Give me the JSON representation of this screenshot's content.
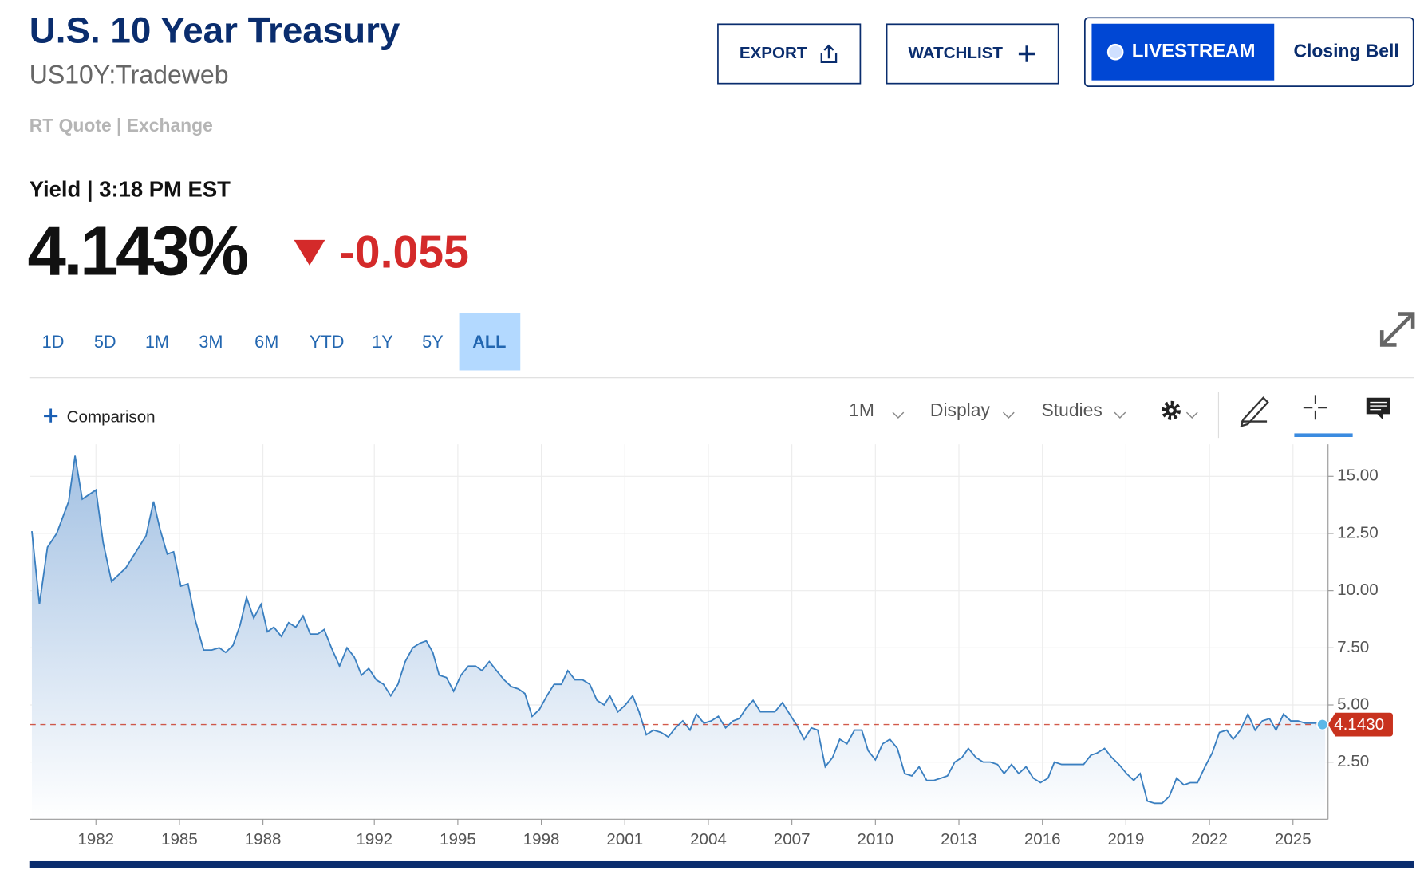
{
  "header": {
    "title": "U.S. 10 Year Treasury",
    "symbol": "US10Y:Tradeweb",
    "quote_source": "RT Quote | Exchange"
  },
  "buttons": {
    "export": "EXPORT",
    "watchlist": "WATCHLIST",
    "livestream": "LIVESTREAM",
    "closing_bell": "Closing Bell"
  },
  "quote": {
    "label": "Yield | 3:18 PM EST",
    "last": "4.143%",
    "change": "-0.055"
  },
  "ranges": [
    {
      "label": "1D"
    },
    {
      "label": "5D"
    },
    {
      "label": "1M"
    },
    {
      "label": "3M"
    },
    {
      "label": "6M"
    },
    {
      "label": "YTD"
    },
    {
      "label": "1Y"
    },
    {
      "label": "5Y"
    },
    {
      "label": "ALL",
      "selected": true
    }
  ],
  "toolbar": {
    "comparison": "Comparison",
    "interval": "1M",
    "display": "Display",
    "studies": "Studies"
  },
  "chart_data": {
    "type": "area",
    "color": "#3a7fc0",
    "grid": true,
    "x": [
      1979.7,
      1979.97,
      1980.26,
      1980.59,
      1981.02,
      1981.25,
      1981.51,
      1982.0,
      1982.26,
      1982.56,
      1983.08,
      1983.54,
      1983.8,
      1984.07,
      1984.3,
      1984.56,
      1984.79,
      1985.05,
      1985.31,
      1985.57,
      1985.87,
      1986.16,
      1986.43,
      1986.66,
      1986.92,
      1987.18,
      1987.41,
      1987.67,
      1987.93,
      1988.16,
      1988.39,
      1988.66,
      1988.92,
      1989.18,
      1989.44,
      1989.7,
      1989.97,
      1990.2,
      1990.46,
      1990.75,
      1991.02,
      1991.28,
      1991.54,
      1991.8,
      1992.07,
      1992.33,
      1992.59,
      1992.85,
      1993.11,
      1993.38,
      1993.64,
      1993.87,
      1994.1,
      1994.33,
      1994.59,
      1994.85,
      1995.11,
      1995.38,
      1995.64,
      1995.87,
      1996.13,
      1996.39,
      1996.66,
      1996.92,
      1997.18,
      1997.41,
      1997.67,
      1997.93,
      1998.2,
      1998.46,
      1998.72,
      1998.95,
      1999.21,
      1999.48,
      1999.74,
      2000.0,
      2000.26,
      2000.46,
      2000.75,
      2001.02,
      2001.28,
      2001.51,
      2001.77,
      2002.03,
      2002.3,
      2002.56,
      2002.82,
      2003.08,
      2003.34,
      2003.57,
      2003.84,
      2004.1,
      2004.36,
      2004.62,
      2004.89,
      2005.11,
      2005.38,
      2005.61,
      2005.87,
      2006.13,
      2006.39,
      2006.66,
      2006.92,
      2007.18,
      2007.44,
      2007.7,
      2007.93,
      2008.2,
      2008.46,
      2008.72,
      2008.98,
      2009.25,
      2009.51,
      2009.74,
      2010.0,
      2010.26,
      2010.52,
      2010.79,
      2011.05,
      2011.31,
      2011.57,
      2011.84,
      2012.1,
      2012.36,
      2012.59,
      2012.85,
      2013.11,
      2013.34,
      2013.61,
      2013.87,
      2014.13,
      2014.39,
      2014.62,
      2014.89,
      2015.15,
      2015.41,
      2015.67,
      2015.93,
      2016.2,
      2016.43,
      2016.69,
      2016.95,
      2017.21,
      2017.48,
      2017.74,
      2017.97,
      2018.23,
      2018.49,
      2018.75,
      2019.02,
      2019.28,
      2019.51,
      2019.77,
      2020.03,
      2020.3,
      2020.56,
      2020.82,
      2021.08,
      2021.31,
      2021.57,
      2021.84,
      2022.1,
      2022.36,
      2022.62,
      2022.85,
      2023.11,
      2023.38,
      2023.64,
      2023.9,
      2024.16,
      2024.39,
      2024.66,
      2024.92,
      2025.18,
      2025.44,
      2025.7,
      2025.97,
      2026.16
    ],
    "values": [
      12.6,
      9.4,
      11.9,
      12.5,
      13.9,
      15.9,
      14.0,
      14.4,
      12.1,
      10.4,
      11.0,
      11.9,
      12.4,
      13.9,
      12.7,
      11.6,
      11.7,
      10.2,
      10.3,
      8.7,
      7.4,
      7.4,
      7.5,
      7.3,
      7.6,
      8.5,
      9.7,
      8.8,
      9.4,
      8.2,
      8.4,
      8.0,
      8.6,
      8.4,
      8.9,
      8.1,
      8.1,
      8.3,
      7.5,
      6.7,
      7.5,
      7.1,
      6.3,
      6.6,
      6.1,
      5.9,
      5.4,
      5.9,
      6.9,
      7.5,
      7.7,
      7.8,
      7.3,
      6.3,
      6.2,
      5.6,
      6.3,
      6.7,
      6.7,
      6.5,
      6.9,
      6.5,
      6.1,
      5.8,
      5.7,
      5.5,
      4.5,
      4.8,
      5.4,
      5.9,
      5.9,
      6.5,
      6.1,
      6.1,
      5.9,
      5.2,
      5.0,
      5.4,
      4.7,
      5.0,
      5.4,
      4.7,
      3.7,
      3.9,
      3.8,
      3.6,
      4.0,
      4.3,
      3.9,
      4.6,
      4.2,
      4.3,
      4.5,
      4.0,
      4.3,
      4.4,
      4.9,
      5.2,
      4.7,
      4.7,
      4.7,
      5.1,
      4.6,
      4.1,
      3.5,
      4.0,
      3.9,
      2.3,
      2.7,
      3.5,
      3.3,
      3.9,
      3.9,
      3.0,
      2.6,
      3.3,
      3.5,
      3.1,
      2.0,
      1.9,
      2.3,
      1.7,
      1.7,
      1.8,
      1.9,
      2.5,
      2.7,
      3.1,
      2.7,
      2.5,
      2.5,
      2.4,
      2.0,
      2.4,
      2.0,
      2.3,
      1.8,
      1.6,
      1.8,
      2.5,
      2.4,
      2.4,
      2.4,
      2.4,
      2.8,
      2.9,
      3.1,
      2.7,
      2.4,
      2.0,
      1.7,
      2.0,
      0.8,
      0.7,
      0.7,
      1.0,
      1.8,
      1.5,
      1.6,
      1.6,
      2.3,
      2.9,
      3.8,
      3.9,
      3.5,
      3.9,
      4.6,
      3.9,
      4.3,
      4.4,
      3.9,
      4.6,
      4.3,
      4.3,
      4.2,
      4.2,
      4.2,
      4.143
    ],
    "xlim": [
      1979.64,
      2026.26
    ],
    "xticks": [
      1982,
      1985,
      1988,
      1992,
      1995,
      1998,
      2001,
      2004,
      2007,
      2010,
      2013,
      2016,
      2019,
      2022,
      2025
    ],
    "ylim": [
      0,
      16.4
    ],
    "yticks": [
      {
        "value": 2.5,
        "label": "2.50"
      },
      {
        "value": 5,
        "label": "5.00"
      },
      {
        "value": 7.5,
        "label": "7.50"
      },
      {
        "value": 10,
        "label": "10.00"
      },
      {
        "value": 12.5,
        "label": "12.50"
      },
      {
        "value": 15,
        "label": "15.00"
      }
    ],
    "last_value": {
      "value": 4.143,
      "label": "4.1430",
      "color": "#c8321e"
    }
  }
}
